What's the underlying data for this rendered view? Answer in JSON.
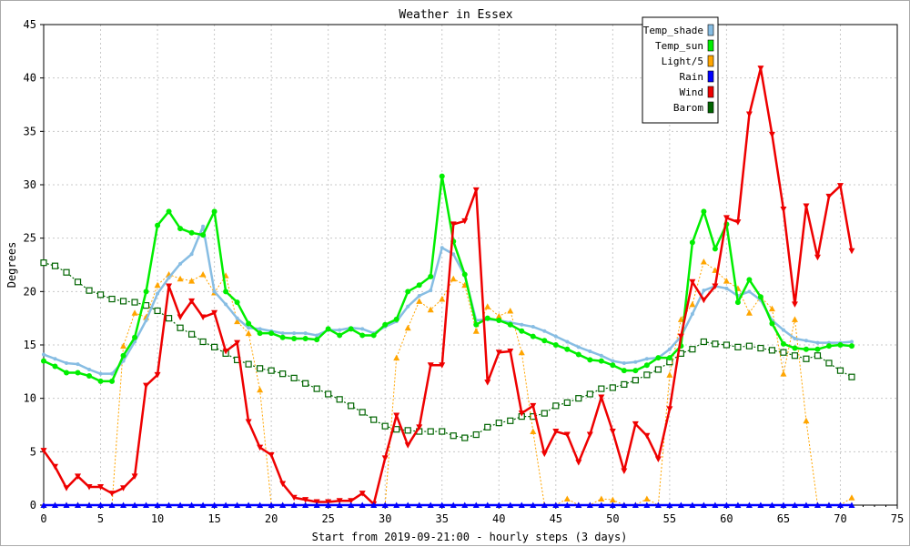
{
  "chart_data": {
    "type": "line",
    "title": "Weather in Essex",
    "xlabel": "Start from 2019-09-21:00 - hourly steps (3 days)",
    "ylabel": "Degrees",
    "xlim": [
      0,
      75
    ],
    "ylim": [
      0,
      45
    ],
    "x_ticks": [
      0,
      5,
      10,
      15,
      20,
      25,
      30,
      35,
      40,
      45,
      50,
      55,
      60,
      65,
      70,
      75
    ],
    "y_ticks": [
      0,
      5,
      10,
      15,
      20,
      25,
      30,
      35,
      40,
      45
    ],
    "grid": true,
    "legend_position": "top-right",
    "x": [
      0,
      1,
      2,
      3,
      4,
      5,
      6,
      7,
      8,
      9,
      10,
      11,
      12,
      13,
      14,
      15,
      16,
      17,
      18,
      19,
      20,
      21,
      22,
      23,
      24,
      25,
      26,
      27,
      28,
      29,
      30,
      31,
      32,
      33,
      34,
      35,
      36,
      37,
      38,
      39,
      40,
      41,
      42,
      43,
      44,
      45,
      46,
      47,
      48,
      49,
      50,
      51,
      52,
      53,
      54,
      55,
      56,
      57,
      58,
      59,
      60,
      61,
      62,
      63,
      64,
      65,
      66,
      67,
      68,
      69,
      70,
      71
    ],
    "series": [
      {
        "name": "Temp_shade",
        "color": "#87bde3",
        "values": [
          14.1,
          13.7,
          13.3,
          13.2,
          12.7,
          12.3,
          12.3,
          13.5,
          15.3,
          17.3,
          19.8,
          21.3,
          22.6,
          23.5,
          26.1,
          20.0,
          18.8,
          17.5,
          16.6,
          16.5,
          16.3,
          16.1,
          16.1,
          16.1,
          15.9,
          16.4,
          16.4,
          16.6,
          16.5,
          16.1,
          16.7,
          17.2,
          18.6,
          19.6,
          20.1,
          24.1,
          23.5,
          21.5,
          17.3,
          17.4,
          17.3,
          17.1,
          16.9,
          16.7,
          16.3,
          15.8,
          15.3,
          14.8,
          14.4,
          14.0,
          13.5,
          13.3,
          13.4,
          13.7,
          13.8,
          14.6,
          15.8,
          17.9,
          20.1,
          20.5,
          20.3,
          19.6,
          20.0,
          19.2,
          17.3,
          16.4,
          15.6,
          15.4,
          15.2,
          15.2,
          15.2,
          15.3
        ]
      },
      {
        "name": "Temp_sun",
        "color": "#00ee00",
        "values": [
          13.5,
          13.0,
          12.4,
          12.4,
          12.1,
          11.6,
          11.6,
          14.0,
          15.7,
          20.0,
          26.2,
          27.5,
          25.9,
          25.5,
          25.3,
          27.5,
          20.0,
          19.0,
          17.0,
          16.1,
          16.1,
          15.7,
          15.6,
          15.6,
          15.5,
          16.5,
          15.9,
          16.5,
          15.9,
          15.9,
          16.9,
          17.4,
          20.0,
          20.6,
          21.4,
          30.8,
          24.7,
          21.6,
          16.9,
          17.5,
          17.3,
          16.9,
          16.3,
          15.8,
          15.4,
          15.0,
          14.6,
          14.1,
          13.6,
          13.5,
          13.1,
          12.6,
          12.6,
          13.1,
          13.8,
          13.8,
          14.9,
          24.6,
          27.5,
          24.0,
          26.3,
          19.0,
          21.1,
          19.5,
          17.0,
          15.1,
          14.7,
          14.6,
          14.6,
          14.9,
          15.0,
          14.9
        ]
      },
      {
        "name": "Light/5",
        "color": "#ffa500",
        "values": [
          0,
          0,
          0,
          0,
          0,
          0,
          0,
          14.9,
          18.0,
          17.6,
          20.6,
          21.6,
          21.2,
          21.0,
          21.6,
          19.9,
          21.5,
          17.2,
          16.1,
          10.8,
          0,
          0,
          0,
          0,
          0,
          0,
          0,
          0,
          0,
          0,
          0,
          13.8,
          16.6,
          19.1,
          18.3,
          19.3,
          21.2,
          20.6,
          16.3,
          18.6,
          17.7,
          18.2,
          14.3,
          6.9,
          0,
          0,
          0.6,
          0,
          0,
          0.6,
          0.5,
          0,
          0,
          0.6,
          0,
          12.2,
          17.4,
          18.8,
          22.8,
          22.0,
          21.0,
          20.3,
          18.0,
          19.5,
          18.4,
          12.3,
          17.4,
          7.9,
          0,
          0,
          0,
          0.7
        ]
      },
      {
        "name": "Rain",
        "color": "#0000ff",
        "values": [
          0,
          0,
          0,
          0,
          0,
          0,
          0,
          0,
          0,
          0,
          0,
          0,
          0,
          0,
          0,
          0,
          0,
          0,
          0,
          0,
          0,
          0,
          0,
          0,
          0,
          0,
          0,
          0,
          0,
          0,
          0,
          0,
          0,
          0,
          0,
          0,
          0,
          0,
          0,
          0,
          0,
          0,
          0,
          0,
          0,
          0,
          0,
          0,
          0,
          0,
          0,
          0,
          0,
          0,
          0,
          0,
          0,
          0,
          0,
          0,
          0,
          0,
          0,
          0,
          0,
          0,
          0,
          0,
          0,
          0,
          0,
          0
        ]
      },
      {
        "name": "Wind",
        "color": "#ee0000",
        "values": [
          5.1,
          3.6,
          1.6,
          2.7,
          1.7,
          1.7,
          1.1,
          1.6,
          2.7,
          11.2,
          12.2,
          20.5,
          17.6,
          19.1,
          17.6,
          18.0,
          14.4,
          15.2,
          7.8,
          5.4,
          4.7,
          2.0,
          0.7,
          0.5,
          0.3,
          0.3,
          0.4,
          0.4,
          1.1,
          0.1,
          4.4,
          8.4,
          5.6,
          7.3,
          13.1,
          13.1,
          26.3,
          26.6,
          29.5,
          11.5,
          14.3,
          14.4,
          8.6,
          9.3,
          4.8,
          6.9,
          6.6,
          4.0,
          6.6,
          10.1,
          6.9,
          3.2,
          7.6,
          6.5,
          4.3,
          9.0,
          15.8,
          20.9,
          19.2,
          20.5,
          26.9,
          26.5,
          36.6,
          40.9,
          34.7,
          27.7,
          18.8,
          28.0,
          23.2,
          28.9,
          29.9,
          23.8
        ]
      },
      {
        "name": "Barom",
        "color": "#006400",
        "values": [
          22.7,
          22.4,
          21.8,
          20.9,
          20.1,
          19.7,
          19.3,
          19.1,
          19.0,
          18.7,
          18.2,
          17.5,
          16.6,
          16.0,
          15.3,
          14.8,
          14.2,
          13.6,
          13.2,
          12.8,
          12.6,
          12.3,
          11.9,
          11.4,
          10.9,
          10.4,
          9.9,
          9.3,
          8.7,
          8.0,
          7.4,
          7.1,
          7.0,
          6.9,
          6.9,
          6.9,
          6.5,
          6.3,
          6.6,
          7.3,
          7.7,
          7.9,
          8.3,
          8.3,
          8.6,
          9.3,
          9.6,
          10.0,
          10.4,
          10.9,
          11.0,
          11.3,
          11.7,
          12.2,
          12.7,
          13.4,
          14.2,
          14.6,
          15.3,
          15.1,
          15.0,
          14.8,
          14.9,
          14.7,
          14.5,
          14.3,
          14.0,
          13.7,
          14.0,
          13.3,
          12.6,
          12.0
        ]
      }
    ]
  }
}
